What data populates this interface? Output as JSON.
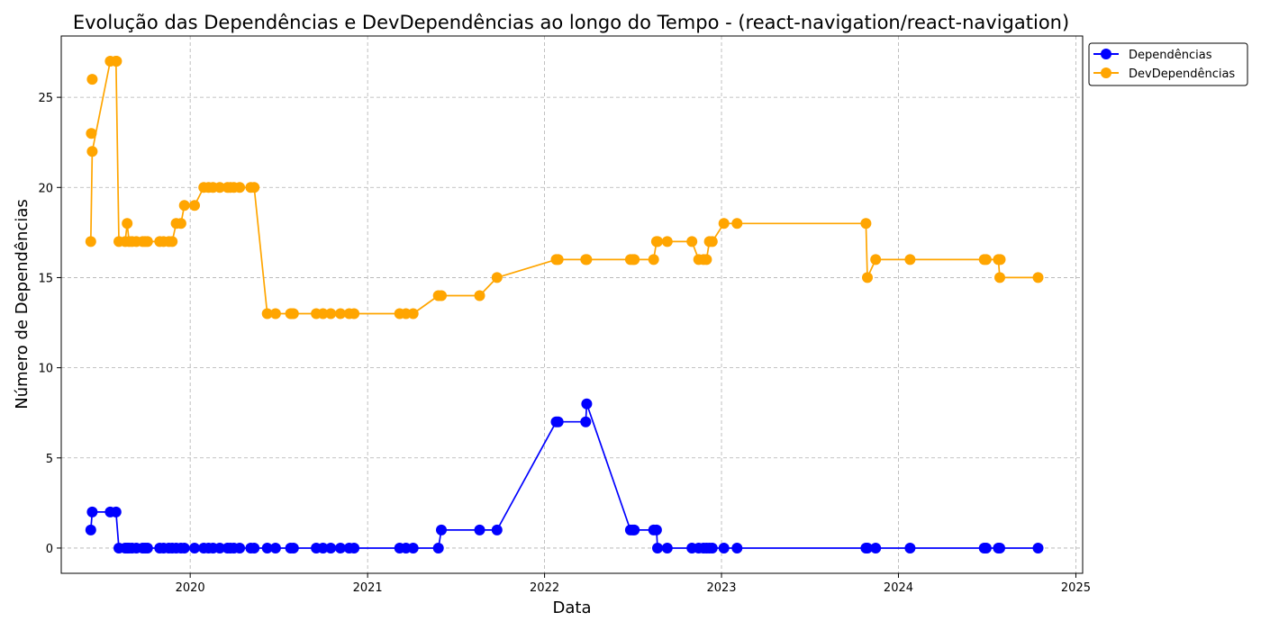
{
  "chart_data": {
    "type": "line",
    "title": "Evolução das Dependências e DevDependências ao longo do Tempo - (react-navigation/react-navigation)",
    "xlabel": "Data",
    "ylabel": "Número de Dependências",
    "xlim": [
      "2019-04-10",
      "2025-01-15"
    ],
    "ylim": [
      -1.4,
      28.4
    ],
    "xticks": [
      "2020-01-01",
      "2021-01-01",
      "2022-01-01",
      "2023-01-01",
      "2024-01-01",
      "2025-01-01"
    ],
    "xtick_labels": [
      "2020",
      "2021",
      "2022",
      "2023",
      "2024",
      "2025"
    ],
    "yticks": [
      0,
      5,
      10,
      15,
      20,
      25
    ],
    "ytick_labels": [
      "0",
      "5",
      "10",
      "15",
      "20",
      "25"
    ],
    "grid": true,
    "legend_position": "outside-top-right",
    "x": [
      "2019-06-10",
      "2019-06-13",
      "2019-07-20",
      "2019-08-01",
      "2019-08-07",
      "2019-08-20",
      "2019-08-24",
      "2019-08-28",
      "2019-09-03",
      "2019-09-12",
      "2019-09-25",
      "2019-09-30",
      "2019-10-05",
      "2019-10-30",
      "2019-11-07",
      "2019-11-18",
      "2019-11-25",
      "2019-12-03",
      "2019-12-13",
      "2019-12-20",
      "2020-01-10",
      "2020-01-29",
      "2020-02-08",
      "2020-02-17",
      "2020-03-02",
      "2020-03-18",
      "2020-03-24",
      "2020-03-31",
      "2020-04-12",
      "2020-05-05",
      "2020-05-12",
      "2020-06-08",
      "2020-06-25",
      "2020-07-26",
      "2020-08-01",
      "2020-09-17",
      "2020-10-01",
      "2020-10-17",
      "2020-11-06",
      "2020-11-24",
      "2020-12-04",
      "2021-03-08",
      "2021-03-21",
      "2021-04-05",
      "2021-05-27",
      "2021-06-02",
      "2021-08-20",
      "2021-09-25",
      "2022-01-25",
      "2022-01-29",
      "2022-03-27",
      "2022-03-29",
      "2022-06-27",
      "2022-07-02",
      "2022-07-05",
      "2022-08-14",
      "2022-08-20",
      "2022-08-22",
      "2022-09-11",
      "2022-11-01",
      "2022-11-15",
      "2022-11-25",
      "2022-12-01",
      "2022-12-07",
      "2022-12-13",
      "2023-01-06",
      "2023-02-02",
      "2023-10-26",
      "2023-10-29",
      "2023-11-15",
      "2024-01-25",
      "2024-06-26",
      "2024-06-30",
      "2024-07-25",
      "2024-07-28",
      "2024-10-15"
    ],
    "series": [
      {
        "name": "Dependências",
        "color": "#0000ff",
        "values": [
          1,
          2,
          2,
          2,
          0,
          0,
          0,
          0,
          0,
          0,
          0,
          0,
          0,
          0,
          0,
          0,
          0,
          0,
          0,
          0,
          0,
          0,
          0,
          0,
          0,
          0,
          0,
          0,
          0,
          0,
          0,
          0,
          0,
          0,
          0,
          0,
          0,
          0,
          0,
          0,
          0,
          0,
          0,
          0,
          0,
          1,
          1,
          1,
          7,
          7,
          7,
          8,
          1,
          1,
          1,
          1,
          1,
          0,
          0,
          0,
          0,
          0,
          0,
          0,
          0,
          0,
          0,
          0,
          0,
          0,
          0,
          0,
          0,
          0,
          0,
          0
        ]
      },
      {
        "name": "DevDependências",
        "color": "#ffa500",
        "values": [
          17,
          22,
          27,
          27,
          17,
          17,
          18,
          17,
          17,
          17,
          17,
          17,
          17,
          17,
          17,
          17,
          17,
          18,
          18,
          19,
          19,
          20,
          20,
          20,
          20,
          20,
          20,
          20,
          20,
          20,
          20,
          13,
          13,
          13,
          13,
          13,
          13,
          13,
          13,
          13,
          13,
          13,
          13,
          13,
          14,
          14,
          14,
          15,
          16,
          16,
          16,
          16,
          16,
          16,
          16,
          16,
          17,
          17,
          17,
          17,
          16,
          16,
          16,
          17,
          17,
          18,
          18,
          18,
          15,
          16,
          16,
          16,
          16,
          16,
          15,
          15
        ],
        "extra_points": [
          {
            "x": "2019-06-11",
            "y": 23
          },
          {
            "x": "2019-06-13",
            "y": 26
          },
          {
            "x": "2019-08-02",
            "y": 27
          },
          {
            "x": "2020-07-28",
            "y": 13
          },
          {
            "x": "2024-07-29",
            "y": 16
          }
        ]
      }
    ]
  }
}
